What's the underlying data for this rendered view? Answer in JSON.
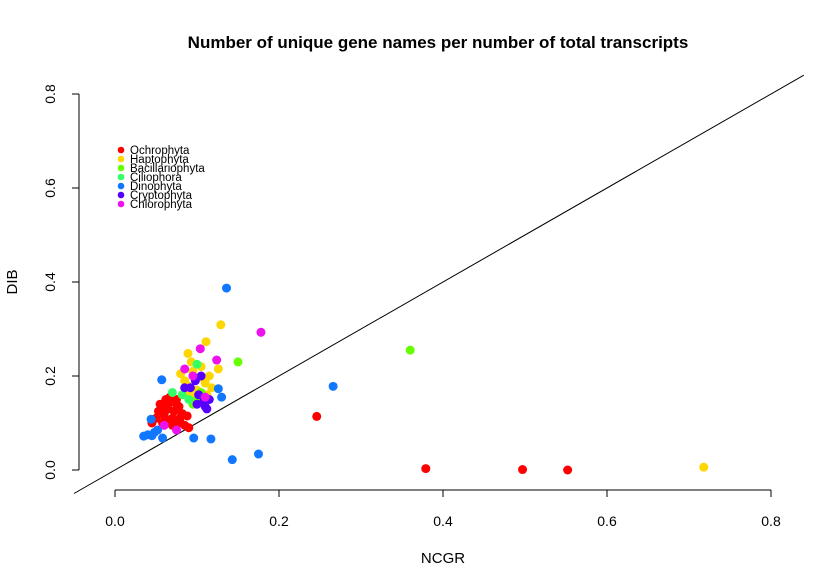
{
  "chart_data": {
    "type": "scatter",
    "title": "Number of unique gene names per number of total transcripts",
    "xlabel": "NCGR",
    "ylabel": "DIB",
    "xlim": [
      0,
      0.8
    ],
    "ylim": [
      0,
      0.8
    ],
    "x_ticks": [
      "0.0",
      "0.2",
      "0.4",
      "0.6",
      "0.8"
    ],
    "y_ticks": [
      "0.0",
      "0.2",
      "0.4",
      "0.6",
      "0.8"
    ],
    "reference_line": "y = x",
    "legend_position": "top-left",
    "series": [
      {
        "name": "Ochrophyta",
        "color": "#FF0000",
        "points": [
          [
            0.246,
            0.114
          ],
          [
            0.379,
            0.003
          ],
          [
            0.497,
            0.001
          ],
          [
            0.552,
            0.0
          ],
          [
            0.055,
            0.14
          ],
          [
            0.06,
            0.12
          ],
          [
            0.065,
            0.13
          ],
          [
            0.07,
            0.11
          ],
          [
            0.075,
            0.15
          ],
          [
            0.08,
            0.1
          ],
          [
            0.085,
            0.095
          ],
          [
            0.05,
            0.11
          ],
          [
            0.068,
            0.145
          ],
          [
            0.072,
            0.125
          ],
          [
            0.078,
            0.135
          ],
          [
            0.058,
            0.1
          ],
          [
            0.062,
            0.15
          ],
          [
            0.09,
            0.09
          ],
          [
            0.065,
            0.105
          ],
          [
            0.082,
            0.12
          ],
          [
            0.07,
            0.095
          ],
          [
            0.053,
            0.125
          ],
          [
            0.06,
            0.115
          ],
          [
            0.075,
            0.14
          ],
          [
            0.088,
            0.115
          ],
          [
            0.067,
            0.155
          ],
          [
            0.073,
            0.1
          ],
          [
            0.063,
            0.135
          ],
          [
            0.045,
            0.1
          ],
          [
            0.058,
            0.13
          ],
          [
            0.079,
            0.11
          ]
        ]
      },
      {
        "name": "Haptophyta",
        "color": "#FFD700",
        "points": [
          [
            0.718,
            0.006
          ],
          [
            0.129,
            0.309
          ],
          [
            0.111,
            0.273
          ],
          [
            0.089,
            0.248
          ],
          [
            0.126,
            0.215
          ],
          [
            0.11,
            0.185
          ],
          [
            0.115,
            0.2
          ],
          [
            0.095,
            0.21
          ],
          [
            0.085,
            0.19
          ],
          [
            0.1,
            0.17
          ],
          [
            0.105,
            0.22
          ],
          [
            0.09,
            0.165
          ],
          [
            0.118,
            0.175
          ],
          [
            0.08,
            0.205
          ],
          [
            0.093,
            0.23
          ],
          [
            0.098,
            0.155
          ],
          [
            0.108,
            0.195
          ],
          [
            0.088,
            0.18
          ],
          [
            0.112,
            0.16
          ]
        ]
      },
      {
        "name": "Bacillariophyta",
        "color": "#66FF00",
        "points": [
          [
            0.36,
            0.255
          ],
          [
            0.15,
            0.23
          ],
          [
            0.1,
            0.15
          ],
          [
            0.095,
            0.14
          ],
          [
            0.105,
            0.165
          ]
        ]
      },
      {
        "name": "Ciliophora",
        "color": "#33FF66",
        "points": [
          [
            0.082,
            0.16
          ],
          [
            0.09,
            0.15
          ],
          [
            0.1,
            0.225
          ],
          [
            0.07,
            0.165
          ]
        ]
      },
      {
        "name": "Dinophyta",
        "color": "#1177FF",
        "points": [
          [
            0.136,
            0.387
          ],
          [
            0.266,
            0.178
          ],
          [
            0.175,
            0.034
          ],
          [
            0.143,
            0.022
          ],
          [
            0.117,
            0.066
          ],
          [
            0.096,
            0.068
          ],
          [
            0.058,
            0.068
          ],
          [
            0.057,
            0.192
          ],
          [
            0.035,
            0.072
          ],
          [
            0.04,
            0.075
          ],
          [
            0.045,
            0.073
          ],
          [
            0.048,
            0.08
          ],
          [
            0.044,
            0.108
          ],
          [
            0.052,
            0.085
          ],
          [
            0.126,
            0.173
          ],
          [
            0.13,
            0.155
          ]
        ]
      },
      {
        "name": "Cryptophyta",
        "color": "#5500FF",
        "points": [
          [
            0.105,
            0.2
          ],
          [
            0.11,
            0.135
          ],
          [
            0.1,
            0.14
          ],
          [
            0.115,
            0.15
          ],
          [
            0.092,
            0.175
          ],
          [
            0.108,
            0.145
          ],
          [
            0.098,
            0.19
          ],
          [
            0.085,
            0.175
          ],
          [
            0.102,
            0.16
          ],
          [
            0.112,
            0.13
          ]
        ]
      },
      {
        "name": "Chlorophyta",
        "color": "#EE11EE",
        "points": [
          [
            0.178,
            0.293
          ],
          [
            0.124,
            0.234
          ],
          [
            0.104,
            0.258
          ],
          [
            0.085,
            0.215
          ],
          [
            0.095,
            0.2
          ],
          [
            0.11,
            0.155
          ],
          [
            0.06,
            0.095
          ],
          [
            0.075,
            0.085
          ]
        ]
      }
    ]
  }
}
